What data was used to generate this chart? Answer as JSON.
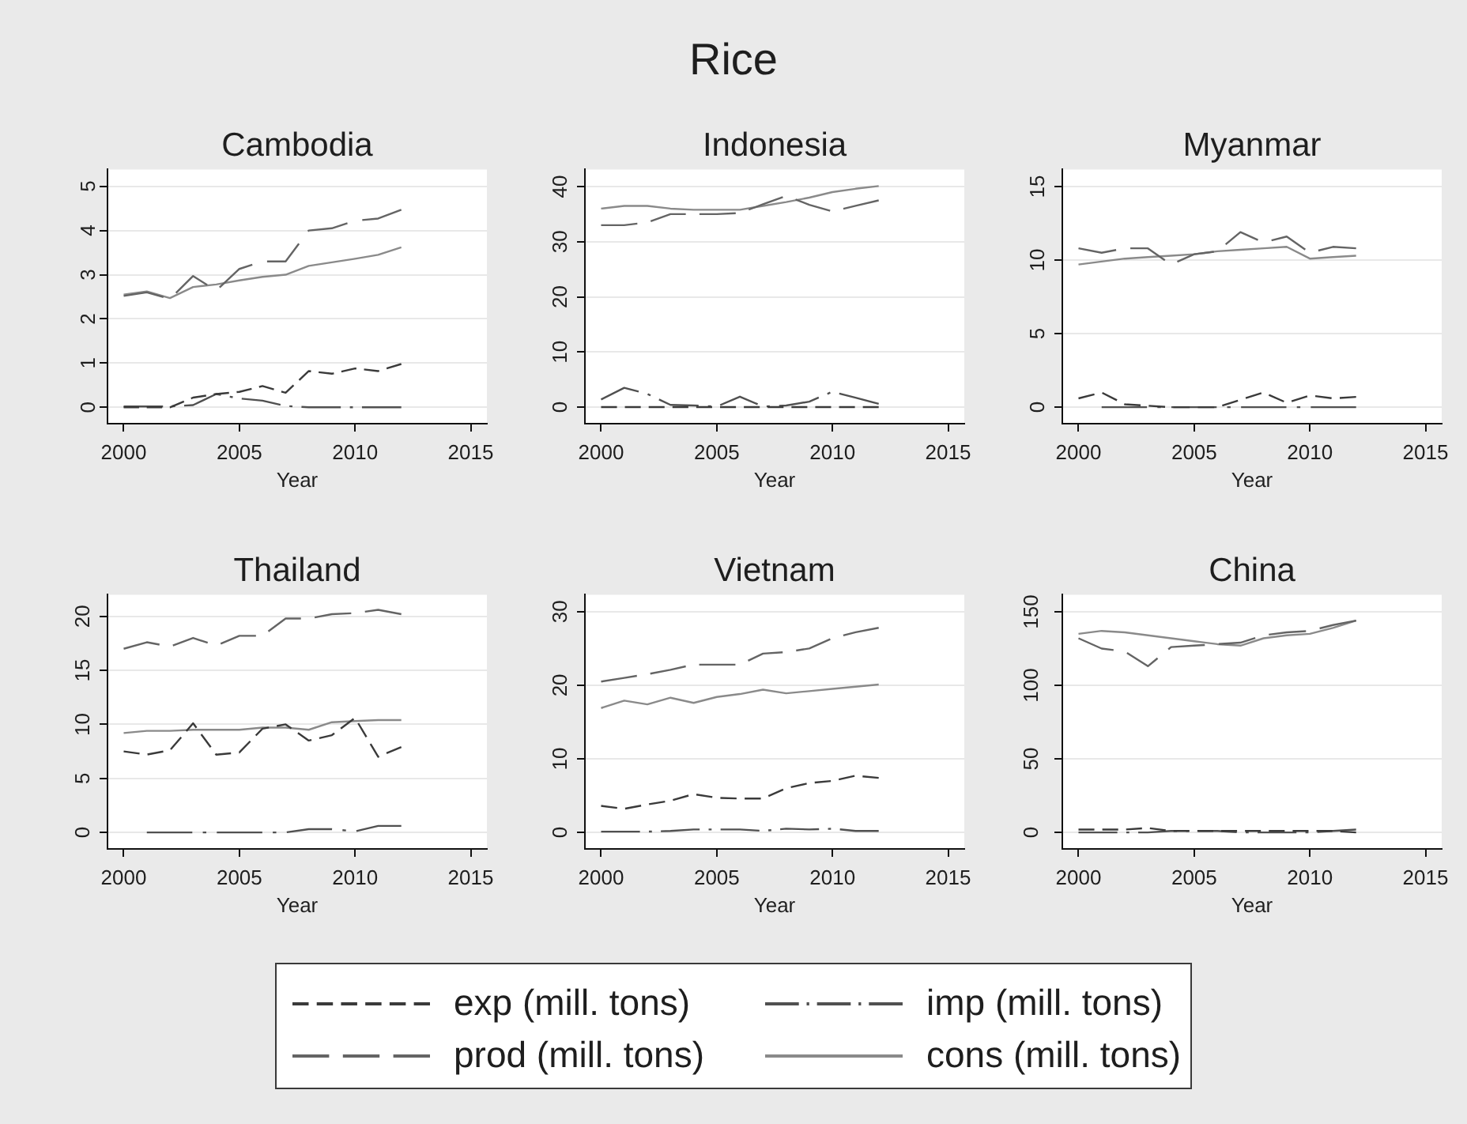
{
  "chart_data": [
    {
      "type": "other",
      "title": "Rice"
    },
    {
      "type": "line",
      "title": "Cambodia",
      "xlabel": "Year",
      "x": [
        2000,
        2001,
        2002,
        2003,
        2004,
        2005,
        2006,
        2007,
        2008,
        2009,
        2010,
        2011,
        2012
      ],
      "xlim": [
        1999.3,
        2015.7
      ],
      "xticks": [
        2000,
        2005,
        2010,
        2015
      ],
      "ylim": [
        -0.37,
        5.38
      ],
      "yticks": [
        0,
        1,
        2,
        3,
        4,
        5
      ],
      "grid": "y",
      "legend": "bottom",
      "series": [
        {
          "name": "exp (mill. tons)",
          "color": "#3a3a3a",
          "line_style": "dashed",
          "values": [
            0,
            0,
            0,
            0.22,
            0.3,
            0.35,
            0.48,
            0.33,
            0.82,
            0.76,
            0.88,
            0.82,
            0.98
          ]
        },
        {
          "name": "imp (mill. tons)",
          "color": "#505050",
          "line_style": "dashdot",
          "values": [
            0.02,
            0.02,
            0.02,
            0.05,
            0.3,
            0.2,
            0.15,
            0.03,
            0,
            0,
            0,
            0,
            0
          ]
        },
        {
          "name": "prod (mill. tons)",
          "color": "#646464",
          "line_style": "longdash",
          "values": [
            2.52,
            2.6,
            2.45,
            2.97,
            2.64,
            3.13,
            3.3,
            3.3,
            4.0,
            4.05,
            4.22,
            4.27,
            4.47
          ]
        },
        {
          "name": "cons (mill. tons)",
          "color": "#8a8a8a",
          "line_style": "solid",
          "values": [
            2.55,
            2.62,
            2.47,
            2.72,
            2.78,
            2.87,
            2.95,
            3.0,
            3.2,
            3.28,
            3.36,
            3.45,
            3.62
          ]
        }
      ]
    },
    {
      "type": "line",
      "title": "Indonesia",
      "xlabel": "Year",
      "x": [
        2000,
        2001,
        2002,
        2003,
        2004,
        2005,
        2006,
        2007,
        2008,
        2009,
        2010,
        2011,
        2012
      ],
      "xlim": [
        1999.3,
        2015.7
      ],
      "xticks": [
        2000,
        2005,
        2010,
        2015
      ],
      "ylim": [
        -3.0,
        43.1
      ],
      "yticks": [
        0,
        10,
        20,
        30,
        40
      ],
      "grid": "y",
      "series": [
        {
          "color": "#3a3a3a",
          "line_style": "dashed",
          "values": [
            0,
            0,
            0,
            0,
            0,
            0,
            0,
            0,
            0,
            0,
            0,
            0,
            0
          ]
        },
        {
          "color": "#505050",
          "line_style": "dashdot",
          "values": [
            1.4,
            3.5,
            2.4,
            0.4,
            0.3,
            0.1,
            1.9,
            0.1,
            0.3,
            1.0,
            2.8,
            1.7,
            0.6
          ]
        },
        {
          "color": "#646464",
          "line_style": "longdash",
          "values": [
            33,
            33,
            33.5,
            35,
            35,
            35,
            35.2,
            36.8,
            38.3,
            36.7,
            35.5,
            36.5,
            37.5
          ]
        },
        {
          "color": "#8a8a8a",
          "line_style": "solid",
          "values": [
            36,
            36.5,
            36.5,
            36,
            35.8,
            35.8,
            35.8,
            36.5,
            37.2,
            38,
            39,
            39.6,
            40.1
          ]
        }
      ]
    },
    {
      "type": "line",
      "title": "Myanmar",
      "xlabel": "Year",
      "x": [
        2000,
        2001,
        2002,
        2003,
        2004,
        2005,
        2006,
        2007,
        2008,
        2009,
        2010,
        2011,
        2012
      ],
      "xlim": [
        1999.3,
        2015.7
      ],
      "xticks": [
        2000,
        2005,
        2010,
        2015
      ],
      "ylim": [
        -1.12,
        16.16
      ],
      "yticks": [
        0,
        5,
        10,
        15
      ],
      "grid": "y",
      "series": [
        {
          "color": "#3a3a3a",
          "line_style": "dashed",
          "values": [
            0.6,
            1.0,
            0.2,
            0.1,
            0,
            0,
            0,
            0.5,
            1.0,
            0.3,
            0.8,
            0.6,
            0.7
          ]
        },
        {
          "color": "#505050",
          "line_style": "dashdot",
          "values": [
            null,
            0,
            0,
            0,
            0,
            0,
            0,
            0,
            0,
            0,
            0,
            0,
            0
          ]
        },
        {
          "color": "#646464",
          "line_style": "longdash",
          "values": [
            10.8,
            10.5,
            10.8,
            10.8,
            9.7,
            10.4,
            10.6,
            11.9,
            11.2,
            11.6,
            10.5,
            10.9,
            10.8
          ]
        },
        {
          "color": "#8a8a8a",
          "line_style": "solid",
          "values": [
            9.7,
            9.9,
            10.1,
            10.2,
            10.3,
            10.4,
            10.6,
            10.7,
            10.8,
            10.9,
            10.1,
            10.2,
            10.3
          ]
        }
      ]
    },
    {
      "type": "line",
      "title": "Thailand",
      "xlabel": "Year",
      "x": [
        2000,
        2001,
        2002,
        2003,
        2004,
        2005,
        2006,
        2007,
        2008,
        2009,
        2010,
        2011,
        2012
      ],
      "xlim": [
        1999.3,
        2015.7
      ],
      "xticks": [
        2000,
        2005,
        2010,
        2015
      ],
      "ylim": [
        -1.53,
        22.0
      ],
      "yticks": [
        0,
        5,
        10,
        15,
        20
      ],
      "grid": "y",
      "series": [
        {
          "color": "#3a3a3a",
          "line_style": "dashed",
          "values": [
            7.5,
            7.2,
            7.6,
            10.1,
            7.2,
            7.4,
            9.6,
            10.0,
            8.5,
            9.0,
            10.6,
            7.0,
            7.9
          ]
        },
        {
          "color": "#505050",
          "line_style": "dashdot",
          "values": [
            null,
            0,
            0,
            0,
            0,
            0,
            0,
            0,
            0.3,
            0.3,
            0.1,
            0.6,
            0.6
          ]
        },
        {
          "color": "#646464",
          "line_style": "longdash",
          "values": [
            17.0,
            17.6,
            17.2,
            18.0,
            17.3,
            18.2,
            18.2,
            19.8,
            19.8,
            20.2,
            20.3,
            20.6,
            20.2
          ]
        },
        {
          "color": "#8a8a8a",
          "line_style": "solid",
          "values": [
            9.2,
            9.4,
            9.4,
            9.5,
            9.5,
            9.5,
            9.7,
            9.7,
            9.5,
            10.2,
            10.3,
            10.4,
            10.4
          ]
        }
      ]
    },
    {
      "type": "line",
      "title": "Vietnam",
      "xlabel": "Year",
      "x": [
        2000,
        2001,
        2002,
        2003,
        2004,
        2005,
        2006,
        2007,
        2008,
        2009,
        2010,
        2011,
        2012
      ],
      "xlim": [
        1999.3,
        2015.7
      ],
      "xticks": [
        2000,
        2005,
        2010,
        2015
      ],
      "ylim": [
        -2.25,
        32.3
      ],
      "yticks": [
        0,
        10,
        20,
        30
      ],
      "grid": "y",
      "series": [
        {
          "color": "#3a3a3a",
          "line_style": "dashed",
          "values": [
            3.6,
            3.2,
            3.8,
            4.3,
            5.2,
            4.7,
            4.6,
            4.6,
            6.0,
            6.7,
            7.0,
            7.7,
            7.4
          ]
        },
        {
          "color": "#505050",
          "line_style": "dashdot",
          "values": [
            0.1,
            0.1,
            0.1,
            0.2,
            0.4,
            0.4,
            0.4,
            0.2,
            0.5,
            0.4,
            0.5,
            0.2,
            0.2
          ]
        },
        {
          "color": "#646464",
          "line_style": "longdash",
          "values": [
            20.5,
            21.0,
            21.5,
            22.1,
            22.8,
            22.8,
            22.8,
            24.3,
            24.5,
            25.0,
            26.4,
            27.2,
            27.8
          ]
        },
        {
          "color": "#8a8a8a",
          "line_style": "solid",
          "values": [
            16.9,
            17.9,
            17.4,
            18.3,
            17.6,
            18.4,
            18.8,
            19.4,
            18.9,
            19.2,
            19.5,
            19.8,
            20.1
          ]
        }
      ]
    },
    {
      "type": "line",
      "title": "China",
      "xlabel": "Year",
      "x": [
        2000,
        2001,
        2002,
        2003,
        2004,
        2005,
        2006,
        2007,
        2008,
        2009,
        2010,
        2011,
        2012
      ],
      "xlim": [
        1999.3,
        2015.7
      ],
      "xticks": [
        2000,
        2005,
        2010,
        2015
      ],
      "ylim": [
        -11.2,
        161.6
      ],
      "yticks": [
        0,
        50,
        100,
        150
      ],
      "grid": "y",
      "series": [
        {
          "color": "#3a3a3a",
          "line_style": "dashed",
          "values": [
            2,
            2,
            2,
            3,
            1,
            1,
            1,
            1,
            1,
            1,
            1,
            1,
            0
          ]
        },
        {
          "color": "#505050",
          "line_style": "dashdot",
          "values": [
            0,
            0,
            0,
            0,
            1,
            1,
            1,
            0,
            0,
            0,
            0,
            1,
            2
          ]
        },
        {
          "color": "#646464",
          "line_style": "longdash",
          "values": [
            132,
            125,
            123,
            113,
            126,
            127,
            128,
            129,
            134,
            136,
            137,
            141,
            144
          ]
        },
        {
          "color": "#8a8a8a",
          "line_style": "solid",
          "values": [
            135,
            137,
            136,
            134,
            132,
            130,
            128,
            127,
            132,
            134,
            135,
            139,
            144
          ]
        }
      ]
    }
  ]
}
